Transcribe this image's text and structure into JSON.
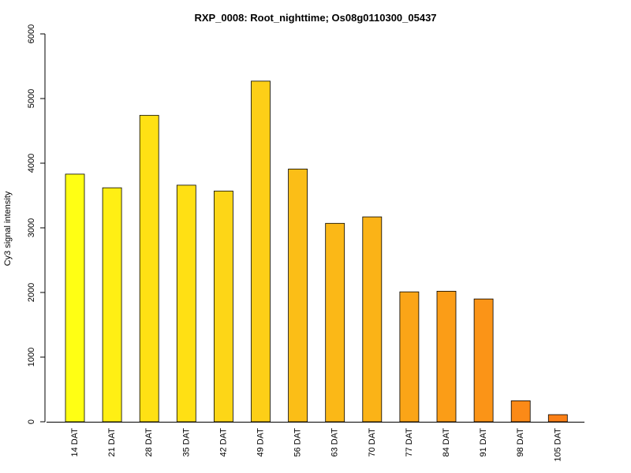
{
  "chart_data": {
    "type": "bar",
    "title": "RXP_0008: Root_nighttime; Os08g0110300_05437",
    "xlabel": "",
    "ylabel": "Cy3 signal intensity",
    "ylim": [
      0,
      6000
    ],
    "yticks": [
      0,
      1000,
      2000,
      3000,
      4000,
      5000,
      6000
    ],
    "categories": [
      "14 DAT",
      "21 DAT",
      "28 DAT",
      "35 DAT",
      "42 DAT",
      "49 DAT",
      "56 DAT",
      "63 DAT",
      "70 DAT",
      "77 DAT",
      "84 DAT",
      "91 DAT",
      "98 DAT",
      "105 DAT"
    ],
    "values": [
      3830,
      3620,
      4740,
      3660,
      3570,
      5270,
      3910,
      3070,
      3170,
      2010,
      2020,
      1900,
      325,
      110
    ],
    "colors": [
      "#FFFF14",
      "#FFEF14",
      "#FFE114",
      "#FFE014",
      "#FDD617",
      "#FDCF17",
      "#FBBE17",
      "#FBB817",
      "#FBB317",
      "#FBA517",
      "#FB9D17",
      "#FB9417",
      "#FB8A17",
      "#FB8017"
    ],
    "grid": false,
    "legend": "none"
  }
}
